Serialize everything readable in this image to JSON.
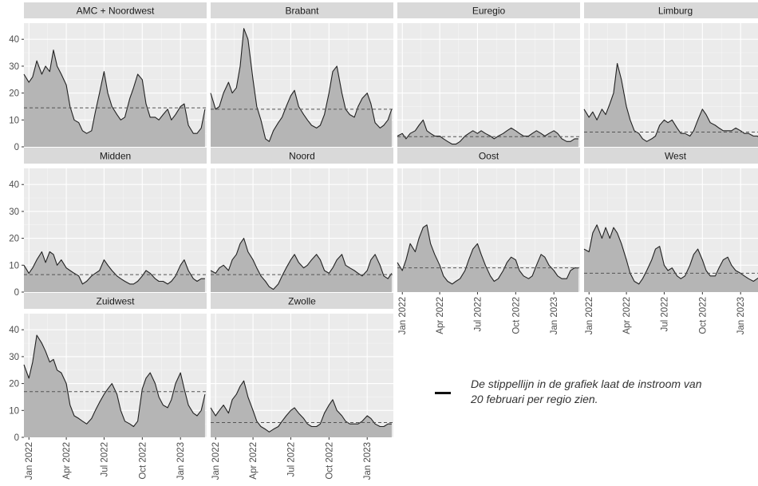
{
  "chart_data": {
    "type": "area",
    "facet_order": [
      "AMC + Noordwest",
      "Brabant",
      "Euregio",
      "Limburg",
      "Midden",
      "Noord",
      "Oost",
      "West",
      "Zuidwest",
      "Zwolle"
    ],
    "yticks": [
      0,
      10,
      20,
      30,
      40
    ],
    "ylim": [
      0,
      46
    ],
    "xlim": [
      "2021-12-20",
      "2023-03-05"
    ],
    "xticks": [
      {
        "date": "2022-01-01",
        "label": "Jan 2022"
      },
      {
        "date": "2022-04-01",
        "label": "Apr 2022"
      },
      {
        "date": "2022-07-01",
        "label": "Jul 2022"
      },
      {
        "date": "2022-10-01",
        "label": "Oct 2022"
      },
      {
        "date": "2023-01-01",
        "label": "Jan 2023"
      }
    ],
    "colors": {
      "area": "#b5b5b5",
      "line": "#222222",
      "panel": "#ebebeb",
      "strip": "#d9d9d9",
      "grid": "#ffffff",
      "reference": "#555555"
    },
    "facets": [
      {
        "name": "AMC + Noordwest",
        "reference": 14.5,
        "x": [
          "2021-12-20",
          "2022-01-01",
          "2022-01-10",
          "2022-01-20",
          "2022-02-01",
          "2022-02-10",
          "2022-02-20",
          "2022-03-01",
          "2022-03-10",
          "2022-03-20",
          "2022-04-01",
          "2022-04-10",
          "2022-04-20",
          "2022-05-01",
          "2022-05-10",
          "2022-05-20",
          "2022-06-01",
          "2022-06-10",
          "2022-06-20",
          "2022-07-01",
          "2022-07-10",
          "2022-07-20",
          "2022-08-01",
          "2022-08-10",
          "2022-08-20",
          "2022-09-01",
          "2022-09-10",
          "2022-09-20",
          "2022-10-01",
          "2022-10-10",
          "2022-10-20",
          "2022-11-01",
          "2022-11-10",
          "2022-11-20",
          "2022-12-01",
          "2022-12-10",
          "2022-12-20",
          "2023-01-01",
          "2023-01-10",
          "2023-01-20",
          "2023-02-01",
          "2023-02-10",
          "2023-02-20",
          "2023-03-01"
        ],
        "y": [
          27,
          24,
          26,
          32,
          27,
          30,
          28,
          36,
          30,
          27,
          23,
          15,
          10,
          9,
          6,
          5,
          6,
          13,
          20,
          28,
          20,
          15,
          12,
          10,
          11,
          18,
          22,
          27,
          25,
          16,
          11,
          11,
          10,
          12,
          14,
          10,
          12,
          15,
          16,
          8,
          5,
          5,
          7,
          14
        ]
      },
      {
        "name": "Brabant",
        "reference": 14,
        "x": [
          "2021-12-20",
          "2022-01-01",
          "2022-01-10",
          "2022-01-20",
          "2022-02-01",
          "2022-02-10",
          "2022-02-20",
          "2022-03-01",
          "2022-03-10",
          "2022-03-20",
          "2022-04-01",
          "2022-04-10",
          "2022-04-20",
          "2022-05-01",
          "2022-05-10",
          "2022-05-20",
          "2022-06-01",
          "2022-06-10",
          "2022-06-20",
          "2022-07-01",
          "2022-07-10",
          "2022-07-20",
          "2022-08-01",
          "2022-08-10",
          "2022-08-20",
          "2022-09-01",
          "2022-09-10",
          "2022-09-20",
          "2022-10-01",
          "2022-10-10",
          "2022-10-20",
          "2022-11-01",
          "2022-11-10",
          "2022-11-20",
          "2022-12-01",
          "2022-12-10",
          "2022-12-20",
          "2023-01-01",
          "2023-01-10",
          "2023-01-20",
          "2023-02-01",
          "2023-02-10",
          "2023-02-20",
          "2023-03-01"
        ],
        "y": [
          20,
          14,
          15,
          20,
          24,
          20,
          22,
          30,
          44,
          40,
          25,
          15,
          10,
          3,
          2,
          6,
          9,
          11,
          15,
          19,
          21,
          15,
          12,
          10,
          8,
          7,
          8,
          12,
          20,
          28,
          30,
          20,
          14,
          12,
          11,
          15,
          18,
          20,
          16,
          9,
          7,
          8,
          10,
          14
        ]
      },
      {
        "name": "Euregio",
        "reference": 3.8,
        "x": [
          "2021-12-20",
          "2022-01-01",
          "2022-01-10",
          "2022-01-20",
          "2022-02-01",
          "2022-02-10",
          "2022-02-20",
          "2022-03-01",
          "2022-03-10",
          "2022-03-20",
          "2022-04-01",
          "2022-04-10",
          "2022-04-20",
          "2022-05-01",
          "2022-05-10",
          "2022-05-20",
          "2022-06-01",
          "2022-06-10",
          "2022-06-20",
          "2022-07-01",
          "2022-07-10",
          "2022-07-20",
          "2022-08-01",
          "2022-08-10",
          "2022-08-20",
          "2022-09-01",
          "2022-09-10",
          "2022-09-20",
          "2022-10-01",
          "2022-10-10",
          "2022-10-20",
          "2022-11-01",
          "2022-11-10",
          "2022-11-20",
          "2022-12-01",
          "2022-12-10",
          "2022-12-20",
          "2023-01-01",
          "2023-01-10",
          "2023-01-20",
          "2023-02-01",
          "2023-02-10",
          "2023-02-20",
          "2023-03-01"
        ],
        "y": [
          4,
          5,
          3,
          5,
          6,
          8,
          10,
          6,
          5,
          4,
          4,
          3,
          2,
          1,
          1,
          2,
          4,
          5,
          6,
          5,
          6,
          5,
          4,
          3,
          4,
          5,
          6,
          7,
          6,
          5,
          4,
          4,
          5,
          6,
          5,
          4,
          5,
          6,
          5,
          3,
          2,
          2,
          3,
          3
        ]
      },
      {
        "name": "Limburg",
        "reference": 5.5,
        "x": [
          "2021-12-20",
          "2022-01-01",
          "2022-01-10",
          "2022-01-20",
          "2022-02-01",
          "2022-02-10",
          "2022-02-20",
          "2022-03-01",
          "2022-03-10",
          "2022-03-20",
          "2022-04-01",
          "2022-04-10",
          "2022-04-20",
          "2022-05-01",
          "2022-05-10",
          "2022-05-20",
          "2022-06-01",
          "2022-06-10",
          "2022-06-20",
          "2022-07-01",
          "2022-07-10",
          "2022-07-20",
          "2022-08-01",
          "2022-08-10",
          "2022-08-20",
          "2022-09-01",
          "2022-09-10",
          "2022-09-20",
          "2022-10-01",
          "2022-10-10",
          "2022-10-20",
          "2022-11-01",
          "2022-11-10",
          "2022-11-20",
          "2022-12-01",
          "2022-12-10",
          "2022-12-20",
          "2023-01-01",
          "2023-01-10",
          "2023-01-20",
          "2023-02-01",
          "2023-02-10",
          "2023-02-20",
          "2023-03-01"
        ],
        "y": [
          14,
          11,
          13,
          10,
          14,
          12,
          16,
          20,
          31,
          25,
          15,
          10,
          6,
          5,
          3,
          2,
          3,
          4,
          8,
          10,
          9,
          10,
          7,
          5,
          5,
          4,
          6,
          10,
          14,
          12,
          9,
          8,
          7,
          6,
          6,
          6,
          7,
          6,
          5,
          5,
          4,
          4,
          3,
          3
        ]
      },
      {
        "name": "Midden",
        "reference": 6.5,
        "x": [
          "2021-12-20",
          "2022-01-01",
          "2022-01-10",
          "2022-01-20",
          "2022-02-01",
          "2022-02-10",
          "2022-02-20",
          "2022-03-01",
          "2022-03-10",
          "2022-03-20",
          "2022-04-01",
          "2022-04-10",
          "2022-04-20",
          "2022-05-01",
          "2022-05-10",
          "2022-05-20",
          "2022-06-01",
          "2022-06-10",
          "2022-06-20",
          "2022-07-01",
          "2022-07-10",
          "2022-07-20",
          "2022-08-01",
          "2022-08-10",
          "2022-08-20",
          "2022-09-01",
          "2022-09-10",
          "2022-09-20",
          "2022-10-01",
          "2022-10-10",
          "2022-10-20",
          "2022-11-01",
          "2022-11-10",
          "2022-11-20",
          "2022-12-01",
          "2022-12-10",
          "2022-12-20",
          "2023-01-01",
          "2023-01-10",
          "2023-01-20",
          "2023-02-01",
          "2023-02-10",
          "2023-02-20",
          "2023-03-01"
        ],
        "y": [
          10,
          7,
          9,
          12,
          15,
          11,
          15,
          14,
          10,
          12,
          9,
          8,
          7,
          6,
          3,
          4,
          6,
          7,
          8,
          12,
          10,
          8,
          6,
          5,
          4,
          3,
          3,
          4,
          6,
          8,
          7,
          5,
          4,
          4,
          3,
          4,
          6,
          10,
          12,
          8,
          5,
          4,
          5,
          5
        ]
      },
      {
        "name": "Noord",
        "reference": 6.5,
        "x": [
          "2021-12-20",
          "2022-01-01",
          "2022-01-10",
          "2022-01-20",
          "2022-02-01",
          "2022-02-10",
          "2022-02-20",
          "2022-03-01",
          "2022-03-10",
          "2022-03-20",
          "2022-04-01",
          "2022-04-10",
          "2022-04-20",
          "2022-05-01",
          "2022-05-10",
          "2022-05-20",
          "2022-06-01",
          "2022-06-10",
          "2022-06-20",
          "2022-07-01",
          "2022-07-10",
          "2022-07-20",
          "2022-08-01",
          "2022-08-10",
          "2022-08-20",
          "2022-09-01",
          "2022-09-10",
          "2022-09-20",
          "2022-10-01",
          "2022-10-10",
          "2022-10-20",
          "2022-11-01",
          "2022-11-10",
          "2022-11-20",
          "2022-12-01",
          "2022-12-10",
          "2022-12-20",
          "2023-01-01",
          "2023-01-10",
          "2023-01-20",
          "2023-02-01",
          "2023-02-10",
          "2023-02-20",
          "2023-03-01"
        ],
        "y": [
          8,
          7,
          9,
          10,
          8,
          12,
          14,
          18,
          20,
          15,
          12,
          9,
          6,
          4,
          2,
          1,
          3,
          6,
          9,
          12,
          14,
          11,
          9,
          10,
          12,
          14,
          12,
          8,
          7,
          9,
          12,
          14,
          10,
          9,
          8,
          7,
          6,
          8,
          12,
          14,
          10,
          6,
          5,
          7
        ]
      },
      {
        "name": "Oost",
        "reference": 9,
        "x": [
          "2021-12-20",
          "2022-01-01",
          "2022-01-10",
          "2022-01-20",
          "2022-02-01",
          "2022-02-10",
          "2022-02-20",
          "2022-03-01",
          "2022-03-10",
          "2022-03-20",
          "2022-04-01",
          "2022-04-10",
          "2022-04-20",
          "2022-05-01",
          "2022-05-10",
          "2022-05-20",
          "2022-06-01",
          "2022-06-10",
          "2022-06-20",
          "2022-07-01",
          "2022-07-10",
          "2022-07-20",
          "2022-08-01",
          "2022-08-10",
          "2022-08-20",
          "2022-09-01",
          "2022-09-10",
          "2022-09-20",
          "2022-10-01",
          "2022-10-10",
          "2022-10-20",
          "2022-11-01",
          "2022-11-10",
          "2022-11-20",
          "2022-12-01",
          "2022-12-10",
          "2022-12-20",
          "2023-01-01",
          "2023-01-10",
          "2023-01-20",
          "2023-02-01",
          "2023-02-10",
          "2023-02-20",
          "2023-03-01"
        ],
        "y": [
          11,
          8,
          12,
          18,
          15,
          20,
          24,
          25,
          18,
          14,
          10,
          6,
          4,
          3,
          4,
          5,
          8,
          12,
          16,
          18,
          14,
          10,
          6,
          4,
          5,
          8,
          11,
          13,
          12,
          8,
          6,
          5,
          6,
          10,
          14,
          13,
          10,
          8,
          6,
          5,
          5,
          8,
          9,
          9
        ]
      },
      {
        "name": "West",
        "reference": 7,
        "x": [
          "2021-12-20",
          "2022-01-01",
          "2022-01-10",
          "2022-01-20",
          "2022-02-01",
          "2022-02-10",
          "2022-02-20",
          "2022-03-01",
          "2022-03-10",
          "2022-03-20",
          "2022-04-01",
          "2022-04-10",
          "2022-04-20",
          "2022-05-01",
          "2022-05-10",
          "2022-05-20",
          "2022-06-01",
          "2022-06-10",
          "2022-06-20",
          "2022-07-01",
          "2022-07-10",
          "2022-07-20",
          "2022-08-01",
          "2022-08-10",
          "2022-08-20",
          "2022-09-01",
          "2022-09-10",
          "2022-09-20",
          "2022-10-01",
          "2022-10-10",
          "2022-10-20",
          "2022-11-01",
          "2022-11-10",
          "2022-11-20",
          "2022-12-01",
          "2022-12-10",
          "2022-12-20",
          "2023-01-01",
          "2023-01-10",
          "2023-01-20",
          "2023-02-01",
          "2023-02-10",
          "2023-02-20",
          "2023-03-01"
        ],
        "y": [
          16,
          15,
          22,
          25,
          20,
          24,
          20,
          24,
          22,
          18,
          12,
          7,
          4,
          3,
          5,
          8,
          12,
          16,
          17,
          10,
          8,
          9,
          6,
          5,
          6,
          10,
          14,
          16,
          12,
          8,
          6,
          6,
          9,
          12,
          13,
          10,
          8,
          7,
          6,
          5,
          4,
          5,
          6,
          6
        ]
      },
      {
        "name": "Zuidwest",
        "reference": 17,
        "x": [
          "2021-12-20",
          "2022-01-01",
          "2022-01-10",
          "2022-01-20",
          "2022-02-01",
          "2022-02-10",
          "2022-02-20",
          "2022-03-01",
          "2022-03-10",
          "2022-03-20",
          "2022-04-01",
          "2022-04-10",
          "2022-04-20",
          "2022-05-01",
          "2022-05-10",
          "2022-05-20",
          "2022-06-01",
          "2022-06-10",
          "2022-06-20",
          "2022-07-01",
          "2022-07-10",
          "2022-07-20",
          "2022-08-01",
          "2022-08-10",
          "2022-08-20",
          "2022-09-01",
          "2022-09-10",
          "2022-09-20",
          "2022-10-01",
          "2022-10-10",
          "2022-10-20",
          "2022-11-01",
          "2022-11-10",
          "2022-11-20",
          "2022-12-01",
          "2022-12-10",
          "2022-12-20",
          "2023-01-01",
          "2023-01-10",
          "2023-01-20",
          "2023-02-01",
          "2023-02-10",
          "2023-02-20",
          "2023-03-01"
        ],
        "y": [
          27,
          22,
          28,
          38,
          35,
          32,
          28,
          29,
          25,
          24,
          20,
          12,
          8,
          7,
          6,
          5,
          7,
          10,
          13,
          16,
          18,
          20,
          16,
          10,
          6,
          5,
          4,
          6,
          18,
          22,
          24,
          20,
          15,
          12,
          11,
          14,
          20,
          24,
          18,
          12,
          9,
          8,
          10,
          16
        ]
      },
      {
        "name": "Zwolle",
        "reference": 5.5,
        "x": [
          "2021-12-20",
          "2022-01-01",
          "2022-01-10",
          "2022-01-20",
          "2022-02-01",
          "2022-02-10",
          "2022-02-20",
          "2022-03-01",
          "2022-03-10",
          "2022-03-20",
          "2022-04-01",
          "2022-04-10",
          "2022-04-20",
          "2022-05-01",
          "2022-05-10",
          "2022-05-20",
          "2022-06-01",
          "2022-06-10",
          "2022-06-20",
          "2022-07-01",
          "2022-07-10",
          "2022-07-20",
          "2022-08-01",
          "2022-08-10",
          "2022-08-20",
          "2022-09-01",
          "2022-09-10",
          "2022-09-20",
          "2022-10-01",
          "2022-10-10",
          "2022-10-20",
          "2022-11-01",
          "2022-11-10",
          "2022-11-20",
          "2022-12-01",
          "2022-12-10",
          "2022-12-20",
          "2023-01-01",
          "2023-01-10",
          "2023-01-20",
          "2023-02-01",
          "2023-02-10",
          "2023-02-20",
          "2023-03-01"
        ],
        "y": [
          11,
          8,
          10,
          12,
          9,
          14,
          16,
          19,
          21,
          15,
          10,
          6,
          4,
          3,
          2,
          3,
          4,
          6,
          8,
          10,
          11,
          9,
          7,
          5,
          4,
          4,
          5,
          9,
          12,
          14,
          10,
          8,
          6,
          5,
          5,
          5,
          6,
          8,
          7,
          5,
          4,
          4,
          5,
          5
        ]
      }
    ]
  },
  "annotation": {
    "line1": "De stippellijn in de grafiek laat de instroom van",
    "line2": "20 februari per regio zien."
  }
}
